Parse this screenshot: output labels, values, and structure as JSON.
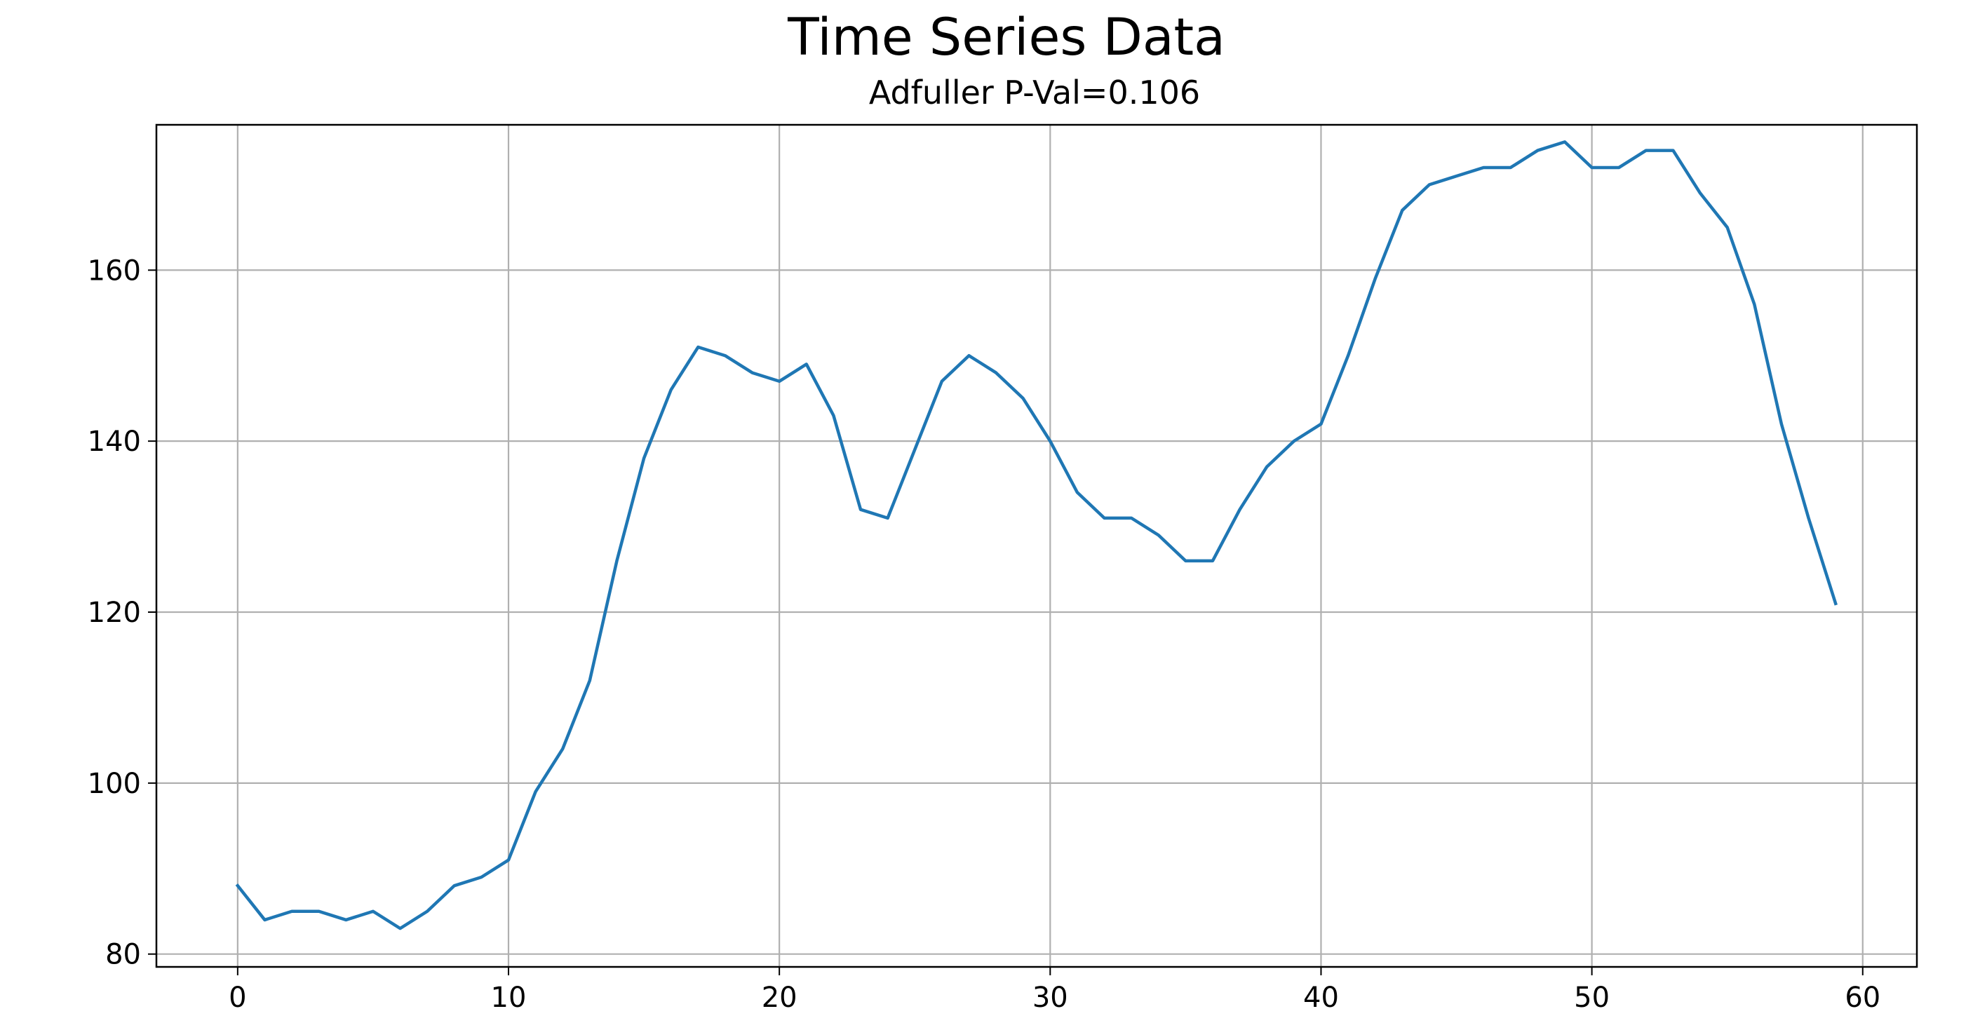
{
  "chart_data": {
    "type": "line",
    "title": "Time Series Data",
    "subtitle": "Adfuller P-Val=0.106",
    "xlabel": "",
    "ylabel": "",
    "xlim": [
      -3,
      62
    ],
    "ylim": [
      78.5,
      177
    ],
    "xticks": [
      0,
      10,
      20,
      30,
      40,
      50,
      60
    ],
    "yticks": [
      80,
      100,
      120,
      140,
      160
    ],
    "grid": true,
    "legend": "none",
    "series": [
      {
        "color": "#1f77b4",
        "x": [
          0,
          1,
          2,
          3,
          4,
          5,
          6,
          7,
          8,
          9,
          10,
          11,
          12,
          13,
          14,
          15,
          16,
          17,
          18,
          19,
          20,
          21,
          22,
          23,
          24,
          25,
          26,
          27,
          28,
          29,
          30,
          31,
          32,
          33,
          34,
          35,
          36,
          37,
          38,
          39,
          40,
          41,
          42,
          43,
          44,
          45,
          46,
          47,
          48,
          49,
          50,
          51,
          52,
          53,
          54,
          55,
          56,
          57,
          58,
          59
        ],
        "values": [
          88,
          84,
          85,
          85,
          84,
          85,
          83,
          85,
          88,
          89,
          91,
          99,
          104,
          112,
          126,
          138,
          146,
          151,
          150,
          148,
          147,
          149,
          143,
          132,
          131,
          139,
          147,
          150,
          148,
          145,
          140,
          134,
          131,
          131,
          129,
          126,
          126,
          132,
          137,
          140,
          142,
          150,
          159,
          167,
          170,
          171,
          172,
          172,
          174,
          175,
          172,
          172,
          174,
          174,
          169,
          165,
          156,
          142,
          131,
          121
        ]
      }
    ]
  }
}
